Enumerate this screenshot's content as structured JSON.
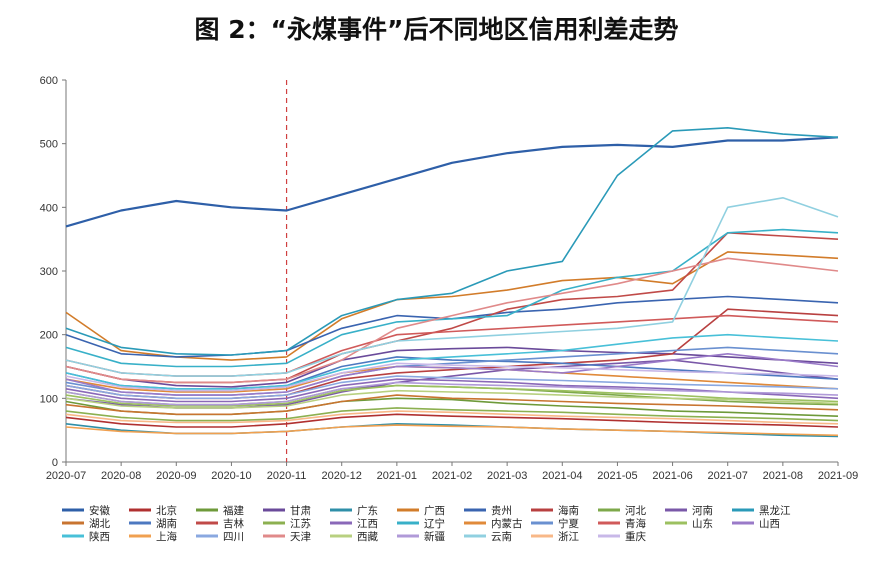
{
  "title": "图 2：“永煤事件”后不同地区信用利差走势",
  "chart_data": {
    "type": "line",
    "title": "图 2：“永煤事件”后不同地区信用利差走势",
    "xlabel": "",
    "ylabel": "",
    "ylim": [
      0,
      600
    ],
    "yticks": [
      0,
      100,
      200,
      300,
      400,
      500,
      600
    ],
    "x_tick_labels": [
      "2020-07",
      "2020-08",
      "2020-09",
      "2020-10",
      "2020-11",
      "2020-12",
      "2021-01",
      "2021-02",
      "2021-03",
      "2021-04",
      "2021-05",
      "2021-06",
      "2021-07",
      "2021-08",
      "2021-09"
    ],
    "event_marker": "2020-11",
    "grid": false,
    "legend_position": "bottom",
    "series": [
      {
        "name": "安徽",
        "color": "#2e5fa8",
        "values": [
          370,
          395,
          410,
          400,
          395,
          420,
          445,
          470,
          485,
          495,
          498,
          495,
          505,
          505,
          510
        ]
      },
      {
        "name": "北京",
        "color": "#b03030",
        "values": [
          70,
          60,
          55,
          55,
          60,
          70,
          75,
          72,
          70,
          68,
          65,
          62,
          60,
          58,
          55
        ]
      },
      {
        "name": "福建",
        "color": "#6e9a3a",
        "values": [
          95,
          80,
          75,
          75,
          80,
          95,
          100,
          98,
          92,
          88,
          85,
          80,
          78,
          75,
          72
        ]
      },
      {
        "name": "甘肃",
        "color": "#6a4a9a",
        "values": [
          150,
          130,
          120,
          118,
          125,
          160,
          175,
          178,
          180,
          175,
          172,
          170,
          165,
          160,
          155
        ]
      },
      {
        "name": "广东",
        "color": "#2f8fa8",
        "values": [
          60,
          50,
          45,
          45,
          48,
          55,
          60,
          58,
          55,
          52,
          50,
          48,
          45,
          42,
          40
        ]
      },
      {
        "name": "广西",
        "color": "#d27c2a",
        "values": [
          235,
          175,
          165,
          160,
          165,
          225,
          255,
          260,
          270,
          285,
          290,
          280,
          330,
          325,
          320
        ]
      },
      {
        "name": "贵州",
        "color": "#3a64b0",
        "values": [
          200,
          170,
          165,
          168,
          175,
          210,
          230,
          225,
          235,
          240,
          250,
          255,
          260,
          255,
          250
        ]
      },
      {
        "name": "海南",
        "color": "#b84040",
        "values": [
          120,
          105,
          100,
          100,
          105,
          130,
          140,
          145,
          150,
          155,
          160,
          170,
          240,
          235,
          230
        ]
      },
      {
        "name": "河北",
        "color": "#7da84a",
        "values": [
          110,
          95,
          90,
          90,
          95,
          115,
          120,
          118,
          115,
          110,
          105,
          100,
          95,
          92,
          90
        ]
      },
      {
        "name": "河南",
        "color": "#7a58a8",
        "values": [
          100,
          90,
          85,
          85,
          90,
          110,
          125,
          135,
          145,
          150,
          155,
          160,
          150,
          140,
          130
        ]
      },
      {
        "name": "黑龙江",
        "color": "#2a9ab8",
        "values": [
          210,
          180,
          170,
          168,
          175,
          230,
          255,
          265,
          300,
          315,
          450,
          520,
          525,
          515,
          510
        ]
      },
      {
        "name": "湖北",
        "color": "#c87430",
        "values": [
          90,
          80,
          75,
          75,
          80,
          95,
          105,
          100,
          98,
          95,
          92,
          90,
          88,
          85,
          82
        ]
      },
      {
        "name": "湖南",
        "color": "#4d78c0",
        "values": [
          140,
          120,
          115,
          115,
          120,
          150,
          165,
          160,
          158,
          155,
          150,
          145,
          140,
          135,
          130
        ]
      },
      {
        "name": "吉林",
        "color": "#c04a48",
        "values": [
          150,
          130,
          125,
          125,
          130,
          170,
          190,
          210,
          240,
          255,
          260,
          270,
          360,
          355,
          350
        ]
      },
      {
        "name": "江苏",
        "color": "#8cb050",
        "values": [
          80,
          70,
          65,
          65,
          68,
          80,
          85,
          82,
          80,
          78,
          75,
          72,
          70,
          68,
          65
        ]
      },
      {
        "name": "江西",
        "color": "#8a68b8",
        "values": [
          115,
          100,
          95,
          95,
          100,
          120,
          130,
          128,
          125,
          120,
          118,
          115,
          110,
          105,
          100
        ]
      },
      {
        "name": "辽宁",
        "color": "#38b0c8",
        "values": [
          180,
          155,
          150,
          150,
          155,
          200,
          220,
          225,
          230,
          270,
          290,
          300,
          360,
          365,
          360
        ]
      },
      {
        "name": "内蒙古",
        "color": "#e08a3a",
        "values": [
          130,
          115,
          110,
          110,
          115,
          140,
          150,
          148,
          145,
          140,
          135,
          130,
          125,
          120,
          115
        ]
      },
      {
        "name": "宁夏",
        "color": "#6a90d0",
        "values": [
          125,
          110,
          105,
          105,
          110,
          135,
          150,
          155,
          160,
          165,
          170,
          175,
          180,
          175,
          170
        ]
      },
      {
        "name": "青海",
        "color": "#d05a5a",
        "values": [
          160,
          140,
          135,
          135,
          140,
          175,
          200,
          205,
          210,
          215,
          220,
          225,
          230,
          225,
          220
        ]
      },
      {
        "name": "山东",
        "color": "#9cc060",
        "values": [
          105,
          92,
          88,
          88,
          92,
          112,
          120,
          118,
          115,
          112,
          108,
          105,
          100,
          98,
          95
        ]
      },
      {
        "name": "山西",
        "color": "#9a7ac8",
        "values": [
          130,
          110,
          105,
          105,
          110,
          135,
          150,
          148,
          145,
          140,
          150,
          160,
          170,
          160,
          150
        ]
      },
      {
        "name": "陕西",
        "color": "#48c0d8",
        "values": [
          140,
          120,
          115,
          115,
          120,
          145,
          160,
          165,
          170,
          175,
          185,
          195,
          200,
          195,
          190
        ]
      },
      {
        "name": "上海",
        "color": "#f0a050",
        "values": [
          55,
          48,
          45,
          45,
          48,
          55,
          58,
          56,
          55,
          52,
          50,
          48,
          46,
          44,
          42
        ]
      },
      {
        "name": "四川",
        "color": "#8aa8e0",
        "values": [
          120,
          105,
          100,
          100,
          105,
          125,
          135,
          132,
          130,
          128,
          125,
          122,
          120,
          118,
          115
        ]
      },
      {
        "name": "天津",
        "color": "#e08a8a",
        "values": [
          150,
          130,
          125,
          125,
          130,
          160,
          210,
          230,
          250,
          265,
          280,
          300,
          320,
          310,
          300
        ]
      },
      {
        "name": "西藏",
        "color": "#b8d080",
        "values": [
          100,
          88,
          85,
          85,
          88,
          105,
          112,
          110,
          108,
          105,
          102,
          100,
          98,
          95,
          92
        ]
      },
      {
        "name": "新疆",
        "color": "#b09ad8",
        "values": [
          110,
          95,
          90,
          90,
          95,
          115,
          125,
          122,
          120,
          118,
          115,
          112,
          110,
          108,
          105
        ]
      },
      {
        "name": "云南",
        "color": "#90d0e0",
        "values": [
          160,
          140,
          135,
          135,
          140,
          170,
          190,
          195,
          200,
          205,
          210,
          220,
          400,
          415,
          385
        ]
      },
      {
        "name": "浙江",
        "color": "#f8b888",
        "values": [
          75,
          65,
          62,
          62,
          65,
          75,
          80,
          78,
          75,
          72,
          70,
          68,
          65,
          62,
          60
        ]
      },
      {
        "name": "重庆",
        "color": "#c8b8e8",
        "values": [
          135,
          118,
          112,
          112,
          118,
          140,
          155,
          152,
          150,
          148,
          145,
          142,
          140,
          138,
          135
        ]
      }
    ]
  }
}
